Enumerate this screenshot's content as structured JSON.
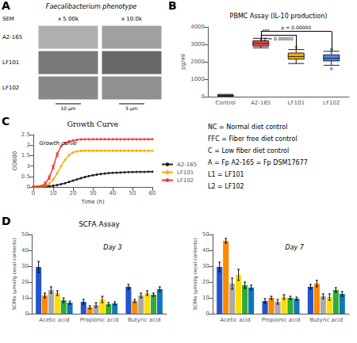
{
  "chart_data": [
    {
      "type": "image_grid",
      "letter": "A",
      "title": "Faecalibacterium phenotype",
      "annotations": [
        "SEM"
      ],
      "columns": [
        "x 5.00k",
        "x 10.0k"
      ],
      "rows": [
        "A2-165",
        "LF101",
        "LF102"
      ],
      "colors": [
        [
          "#b0b0b0",
          "#a0a0a0"
        ],
        [
          "#787878",
          "#686868"
        ],
        [
          "#888888",
          "#909090"
        ]
      ],
      "scale_labels": [
        "10 μm",
        "5 μm"
      ]
    },
    {
      "type": "boxplot",
      "letter": "B",
      "title": "PBMC Assay (IL-10 production)",
      "categories": [
        "Control",
        "A2-165",
        "LF101",
        "LF102"
      ],
      "boxes": [
        {
          "median": 60,
          "q1": 40,
          "q3": 90,
          "whislo": 20,
          "whishi": 130,
          "fliers": []
        },
        {
          "median": 3050,
          "q1": 2900,
          "q3": 3200,
          "whislo": 2800,
          "whishi": 3350,
          "fliers": []
        },
        {
          "median": 2300,
          "q1": 2150,
          "q3": 2500,
          "whislo": 1900,
          "whishi": 2700,
          "fliers": [
            2800,
            2850
          ]
        },
        {
          "median": 2200,
          "q1": 2050,
          "q3": 2400,
          "whislo": 1800,
          "whishi": 2600,
          "fliers": [
            2700,
            1600
          ]
        }
      ],
      "colors": [
        "#aaaaaa",
        "#ff4444",
        "#ffaa00",
        "#4488ff"
      ],
      "ylabel": "pg/ml",
      "ylim": [
        0,
        4000
      ],
      "yticks": [
        0,
        1000,
        2000,
        3000,
        4000
      ],
      "grid": false,
      "brackets": [
        {
          "from": "A2-165",
          "to": "LF102",
          "y": 3750,
          "legs": [
            3200,
            2600
          ],
          "labels": [
            "p = 0.00000"
          ]
        },
        {
          "from": "A2-165",
          "to": "LF101",
          "y": 3550,
          "legs": [
            3200,
            2700
          ],
          "labels": [
            "***",
            "p = 0.00000"
          ]
        }
      ]
    },
    {
      "type": "line",
      "letter": "C",
      "title": "Growth Curve",
      "subtitle": "Growth curve",
      "xlabel": "Time (h)",
      "ylabel": "OD600",
      "x": [
        0,
        2,
        4,
        6,
        8,
        10,
        12,
        14,
        16,
        18,
        20,
        22,
        24,
        26,
        28,
        30,
        32,
        34,
        36,
        38,
        40,
        42,
        44,
        46,
        48,
        50,
        52,
        54,
        56,
        58,
        60
      ],
      "xlim": [
        0,
        60
      ],
      "xticks": [
        0,
        10,
        20,
        30,
        40,
        50,
        60
      ],
      "ylim": [
        0,
        2.5
      ],
      "yticks": [
        0,
        0.5,
        1,
        1.5,
        2,
        2.5
      ],
      "marker": "circle",
      "legend": "lower right",
      "grid": false,
      "series": [
        {
          "name": "A2-165",
          "color": "#222222",
          "values": [
            0.02,
            0.02,
            0.02,
            0.03,
            0.04,
            0.06,
            0.09,
            0.13,
            0.18,
            0.24,
            0.3,
            0.36,
            0.42,
            0.47,
            0.52,
            0.56,
            0.59,
            0.62,
            0.64,
            0.66,
            0.67,
            0.68,
            0.69,
            0.7,
            0.71,
            0.71,
            0.72,
            0.72,
            0.72,
            0.73,
            0.73
          ]
        },
        {
          "name": "LF101",
          "color": "#ffaa00",
          "values": [
            0.02,
            0.02,
            0.03,
            0.06,
            0.15,
            0.35,
            0.65,
            1.0,
            1.3,
            1.52,
            1.65,
            1.7,
            1.72,
            1.73,
            1.73,
            1.73,
            1.73,
            1.73,
            1.73,
            1.73,
            1.73,
            1.73,
            1.73,
            1.73,
            1.73,
            1.73,
            1.73,
            1.73,
            1.73,
            1.73,
            1.73
          ]
        },
        {
          "name": "LF102",
          "color": "#ff3333",
          "values": [
            0.02,
            0.02,
            0.05,
            0.15,
            0.45,
            0.95,
            1.55,
            1.95,
            2.1,
            2.18,
            2.22,
            2.25,
            2.27,
            2.28,
            2.28,
            2.28,
            2.28,
            2.28,
            2.28,
            2.28,
            2.28,
            2.28,
            2.28,
            2.28,
            2.28,
            2.28,
            2.28,
            2.28,
            2.28,
            2.28,
            2.28
          ],
          "errors": [
            null,
            null,
            null,
            0.08,
            0.08,
            0.08,
            0.08,
            null,
            null,
            null,
            null,
            null,
            null,
            null,
            null,
            null,
            null,
            null,
            null,
            null,
            null,
            null,
            null,
            null,
            null,
            null,
            null,
            null,
            null,
            null,
            null
          ]
        }
      ]
    },
    {
      "type": "bar",
      "letter": "D",
      "title": "SCFA Assay",
      "annotations": [
        "Day 3"
      ],
      "ylabel": "SCFAs (μmol/g cecal contents)",
      "categories": [
        "Acetic acid",
        "Propionic acid",
        "Butyric acid"
      ],
      "ylim": [
        0,
        50
      ],
      "yticks": [
        0,
        10,
        20,
        30,
        40,
        50
      ],
      "grid": false,
      "series": [
        {
          "color": "#2255cc",
          "values": [
            29.5,
            7.5,
            17.0
          ],
          "errors": [
            3.5,
            1.5,
            1.5
          ]
        },
        {
          "color": "#ff8800",
          "values": [
            11.5,
            4.0,
            8.0
          ],
          "errors": [
            1.5,
            1.0,
            1.0
          ]
        },
        {
          "color": "#aaaaaa",
          "values": [
            15.0,
            5.5,
            11.5
          ],
          "errors": [
            2.0,
            1.5,
            1.5
          ]
        },
        {
          "color": "#ffdd00",
          "values": [
            13.0,
            9.0,
            13.0
          ],
          "errors": [
            1.5,
            2.0,
            1.5
          ]
        },
        {
          "color": "#33aa33",
          "values": [
            8.5,
            6.0,
            12.0
          ],
          "errors": [
            1.5,
            1.0,
            1.0
          ]
        },
        {
          "color": "#1177bb",
          "values": [
            7.0,
            6.5,
            15.5
          ],
          "errors": [
            1.0,
            1.0,
            1.5
          ]
        }
      ]
    },
    {
      "type": "bar",
      "annotations": [
        "Day 7"
      ],
      "ylabel": "SCFAs (μmol/g cecal contents)",
      "categories": [
        "Acetic acid",
        "Propionic acid",
        "Butyric acid"
      ],
      "ylim": [
        0,
        50
      ],
      "yticks": [
        0,
        10,
        20,
        30,
        40,
        50
      ],
      "grid": false,
      "series": [
        {
          "color": "#2255cc",
          "values": [
            29.5,
            8.0,
            17.0
          ],
          "errors": [
            3.0,
            1.5,
            1.5
          ]
        },
        {
          "color": "#ff8800",
          "values": [
            46.0,
            10.0,
            19.0
          ],
          "errors": [
            1.5,
            1.0,
            2.0
          ]
        },
        {
          "color": "#aaaaaa",
          "values": [
            19.0,
            7.5,
            11.0
          ],
          "errors": [
            3.5,
            1.5,
            1.5
          ]
        },
        {
          "color": "#ffdd00",
          "values": [
            24.5,
            10.5,
            10.5
          ],
          "errors": [
            3.5,
            1.5,
            2.0
          ]
        },
        {
          "color": "#33aa33",
          "values": [
            18.0,
            10.0,
            15.0
          ],
          "errors": [
            2.0,
            1.0,
            1.5
          ]
        },
        {
          "color": "#1177bb",
          "values": [
            16.5,
            9.5,
            12.5
          ],
          "errors": [
            1.5,
            1.0,
            1.5
          ]
        }
      ]
    },
    {
      "type": "text",
      "annotations": [
        "NC = Normal diet control",
        "FFC = Fiber free diet control",
        "C = Low fiber diet control",
        "A = Fp A2-165 = Fp DSM17677",
        "L1 = LF101",
        "L2 = LF102"
      ]
    }
  ]
}
